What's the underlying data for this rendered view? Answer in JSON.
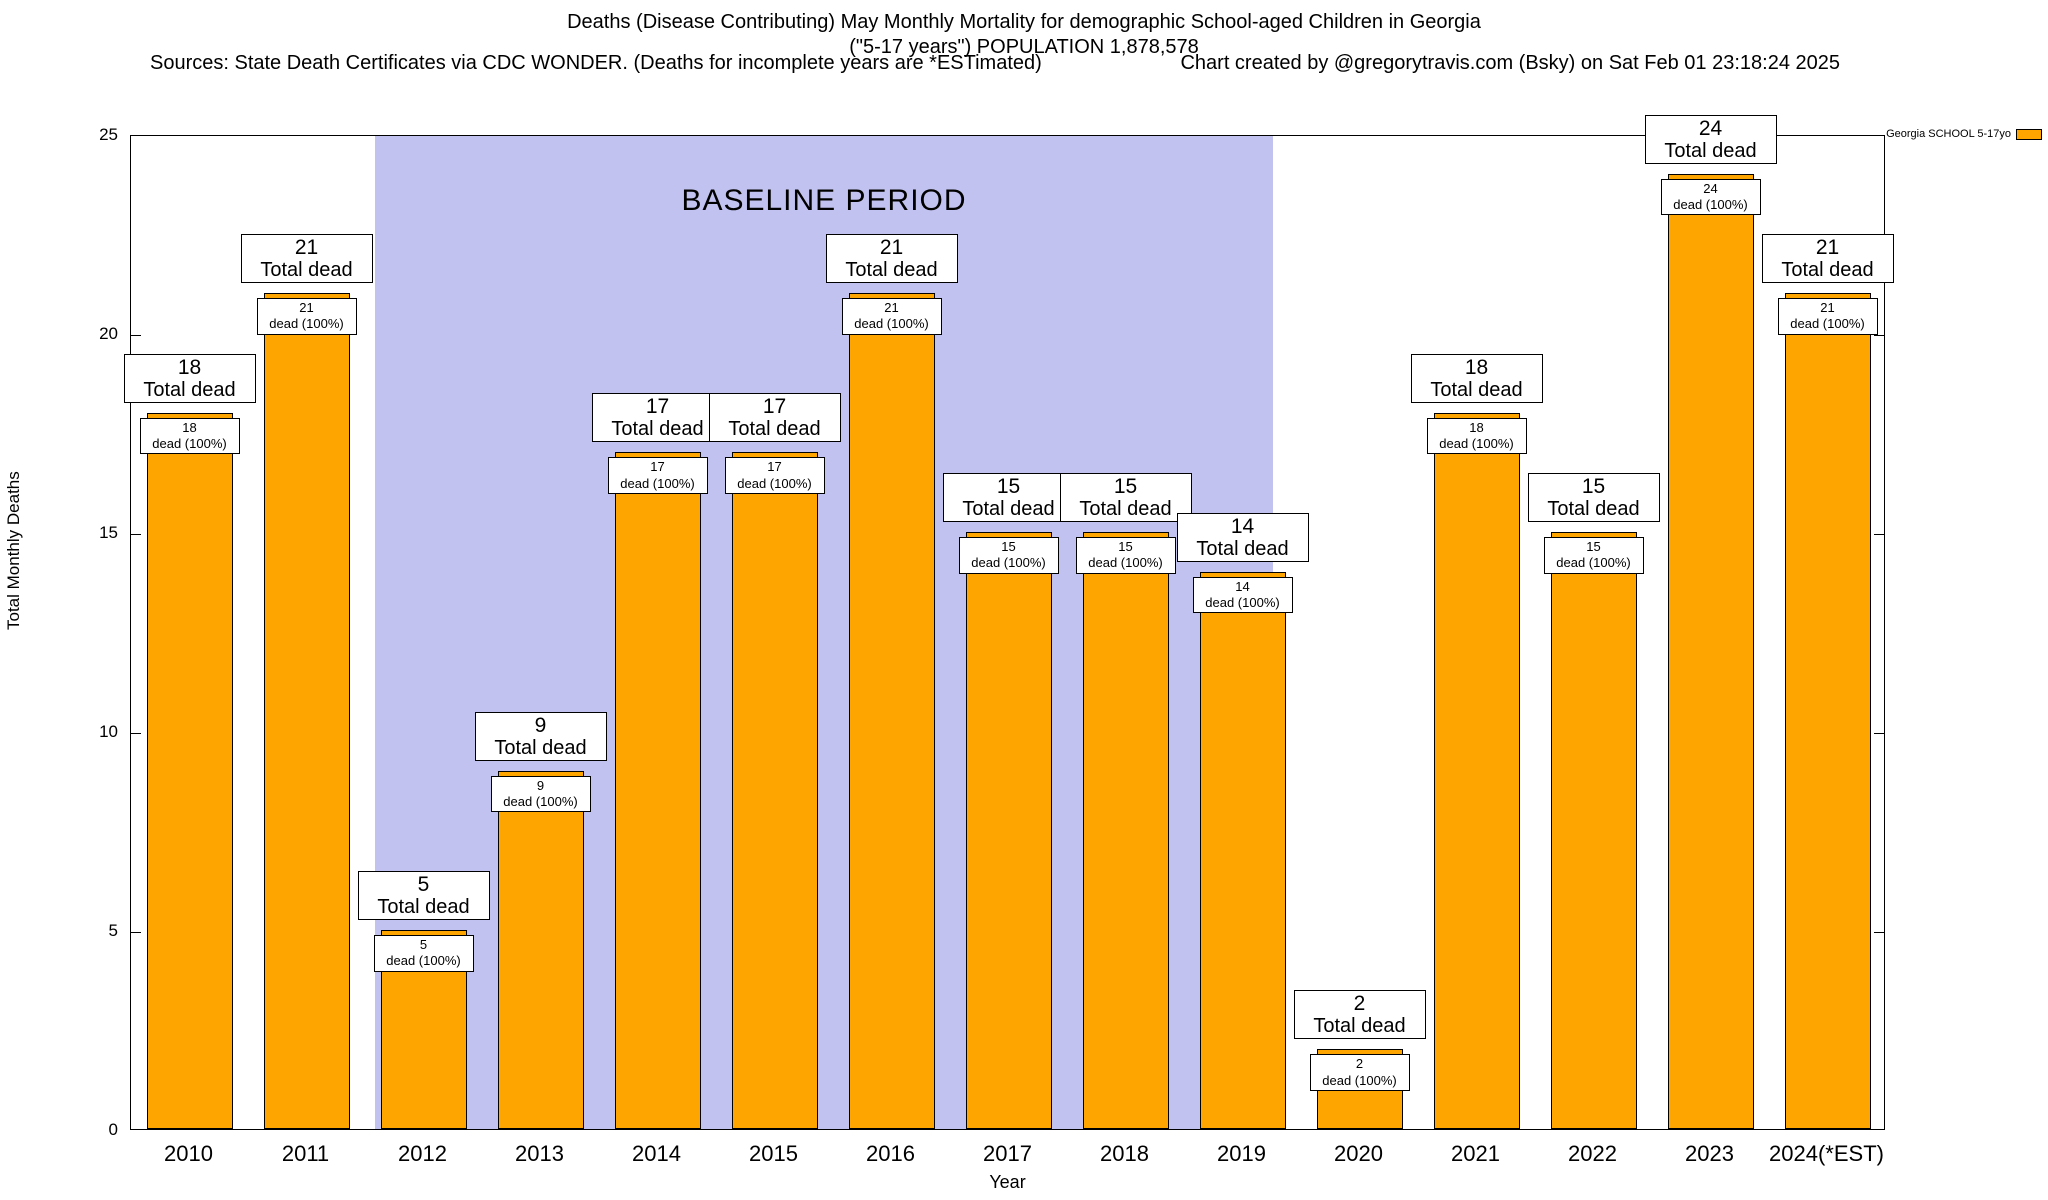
{
  "titles": {
    "line1": "Deaths (Disease Contributing) May Monthly Mortality for demographic School-aged Children in Georgia",
    "line2": "(\"5-17 years\") POPULATION 1,878,578",
    "sources": "Sources: State Death Certificates via CDC WONDER. (Deaths for incomplete years are *ESTimated)",
    "credit": "Chart created by @gregorytravis.com (Bsky) on Sat Feb 01 23:18:24 2025"
  },
  "legend": {
    "label": "Georgia SCHOOL 5-17yo",
    "color": "#ffa500"
  },
  "baseline_label": "BASELINE PERIOD",
  "chart_data": {
    "type": "bar",
    "title": "Deaths (Disease Contributing) May Monthly Mortality for demographic School-aged Children in Georgia",
    "subtitle": "(\"5-17 years\") POPULATION 1,878,578",
    "xlabel": "Year",
    "ylabel": "Total Monthly Deaths",
    "ylim": [
      0,
      25
    ],
    "yticks": [
      0,
      5,
      10,
      15,
      20,
      25
    ],
    "grid": false,
    "legend_position": "top-right",
    "categories": [
      "2010",
      "2011",
      "2012",
      "2013",
      "2014",
      "2015",
      "2016",
      "2017",
      "2018",
      "2019",
      "2020",
      "2021",
      "2022",
      "2023",
      "2024(*EST)"
    ],
    "values": [
      18,
      21,
      5,
      9,
      17,
      17,
      21,
      15,
      15,
      14,
      2,
      18,
      15,
      24,
      21
    ],
    "bar_color": "#ffa500",
    "baseline_period": {
      "from": "2012",
      "to": "2019",
      "color": "#c2c2f0"
    },
    "annotations": {
      "total_label": "Total dead",
      "segment_label": "dead (100%)"
    }
  }
}
